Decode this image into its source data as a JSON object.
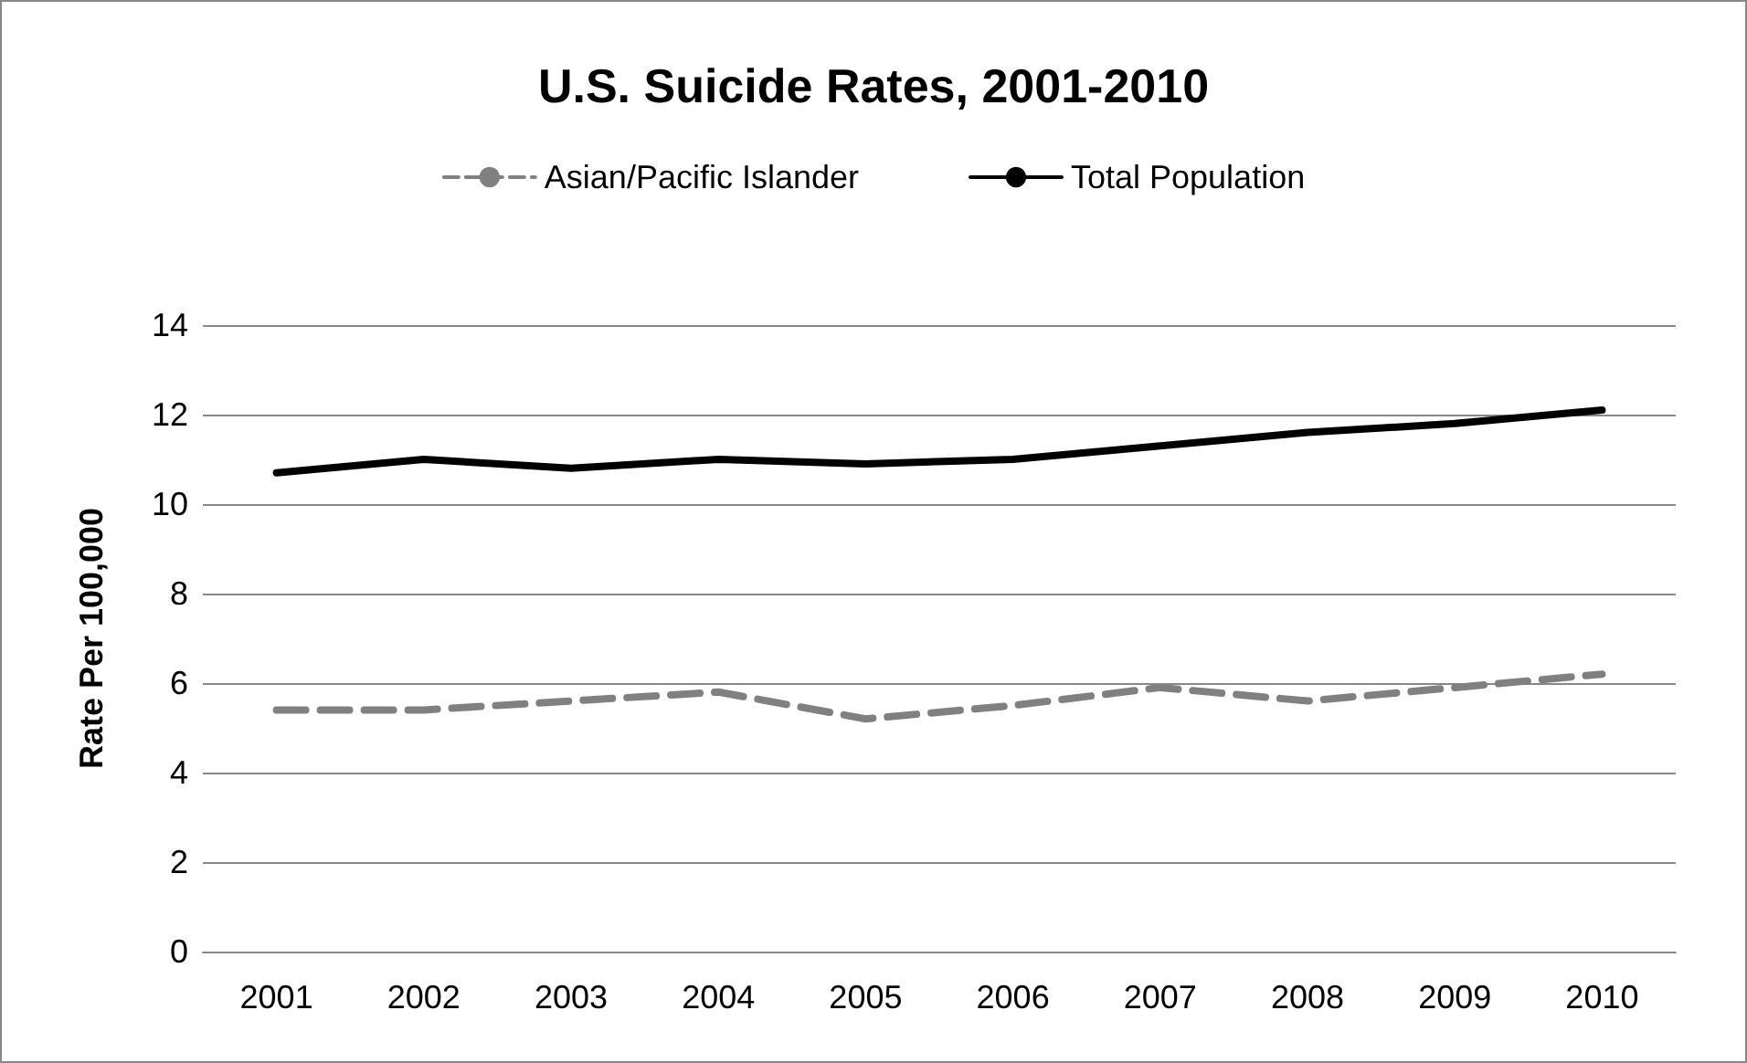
{
  "chart_data": {
    "type": "line",
    "title": "U.S. Suicide Rates, 2001-2010",
    "ylabel": "Rate Per 100,000",
    "categories": [
      "2001",
      "2002",
      "2003",
      "2004",
      "2005",
      "2006",
      "2007",
      "2008",
      "2009",
      "2010"
    ],
    "series": [
      {
        "name": "Asian/Pacific Islander",
        "color": "#808080",
        "line_style": "dashed",
        "values": [
          5.4,
          5.4,
          5.6,
          5.8,
          5.2,
          5.5,
          5.9,
          5.6,
          5.9,
          6.2
        ]
      },
      {
        "name": "Total Population",
        "color": "#000000",
        "line_style": "solid",
        "values": [
          10.7,
          11.0,
          10.8,
          11.0,
          10.9,
          11.0,
          11.3,
          11.6,
          11.8,
          12.1
        ]
      }
    ],
    "ylim": [
      0,
      14
    ],
    "yticks": [
      0,
      2,
      4,
      6,
      8,
      10,
      12,
      14
    ],
    "grid": "y",
    "legend": "top",
    "marker": "none"
  }
}
